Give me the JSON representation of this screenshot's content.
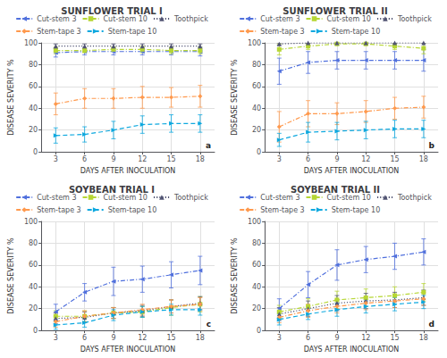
{
  "chart_data": [
    {
      "type": "line",
      "title": "SUNFLOWER TRIAL I",
      "annotation": "a",
      "xlabel": "DAYS AFTER INOCULATION",
      "ylabel": "DISEASE SEVERITY %",
      "x": [
        3,
        6,
        9,
        12,
        15,
        18
      ],
      "xlim": [
        1.5,
        19.5
      ],
      "xticks": [
        3,
        6,
        9,
        12,
        15,
        18
      ],
      "ylim": [
        0,
        100
      ],
      "yticks": [
        0,
        20,
        40,
        60,
        80,
        100
      ],
      "grid": true,
      "legend": "top",
      "series": [
        {
          "name": "Cut-stem 3",
          "values": [
            91,
            92,
            92,
            92,
            92,
            92
          ],
          "yerr": [
            4,
            3,
            3,
            3,
            3,
            4
          ],
          "marker": "triangle-left",
          "line_style": "dashdot"
        },
        {
          "name": "Cut-stem 10",
          "values": [
            93,
            93,
            94,
            94,
            93,
            93
          ],
          "yerr": [
            3,
            2,
            2,
            3,
            3,
            3
          ],
          "marker": "square",
          "line_style": "dashdot"
        },
        {
          "name": "Toothpick",
          "values": [
            97,
            97,
            97,
            97,
            97,
            97
          ],
          "yerr": [
            2,
            2,
            2,
            2,
            2,
            2
          ],
          "marker": "triangle-up",
          "line_style": "dotted"
        },
        {
          "name": "Stem-tape 3",
          "values": [
            44,
            49,
            49,
            50,
            50,
            51
          ],
          "yerr": [
            10,
            9,
            9,
            10,
            9,
            10
          ],
          "marker": "diamond",
          "line_style": "dashdot"
        },
        {
          "name": "Stem-tape 10",
          "values": [
            15,
            16,
            20,
            25,
            26,
            26
          ],
          "yerr": [
            7,
            7,
            8,
            8,
            8,
            8
          ],
          "marker": "triangle-right",
          "line_style": "dashed"
        }
      ]
    },
    {
      "type": "line",
      "title": "SUNFLOWER TRIAL II",
      "annotation": "b",
      "xlabel": "DAYS AFTER INOCULATION",
      "ylabel": "DISEASE SEVERITY %",
      "x": [
        3,
        6,
        9,
        12,
        15,
        18
      ],
      "xlim": [
        1.5,
        19.5
      ],
      "xticks": [
        3,
        6,
        9,
        12,
        15,
        18
      ],
      "ylim": [
        0,
        100
      ],
      "yticks": [
        0,
        20,
        40,
        60,
        80,
        100
      ],
      "grid": true,
      "legend": "top",
      "series": [
        {
          "name": "Cut-stem 3",
          "values": [
            74,
            82,
            84,
            84,
            84,
            84
          ],
          "yerr": [
            12,
            10,
            8,
            8,
            8,
            10
          ],
          "marker": "triangle-left",
          "line_style": "dashdot"
        },
        {
          "name": "Cut-stem 10",
          "values": [
            94,
            97,
            99,
            99,
            97,
            95
          ],
          "yerr": [
            5,
            3,
            1,
            1,
            3,
            5
          ],
          "marker": "square",
          "line_style": "dashdot"
        },
        {
          "name": "Toothpick",
          "values": [
            99,
            100,
            100,
            100,
            100,
            100
          ],
          "yerr": [
            1,
            0,
            0,
            0,
            0,
            0
          ],
          "marker": "triangle-up",
          "line_style": "dotted"
        },
        {
          "name": "Stem-tape 3",
          "values": [
            23,
            35,
            35,
            37,
            40,
            41
          ],
          "yerr": [
            14,
            12,
            10,
            10,
            10,
            10
          ],
          "marker": "diamond",
          "line_style": "dashdot"
        },
        {
          "name": "Stem-tape 10",
          "values": [
            11,
            18,
            19,
            20,
            21,
            21
          ],
          "yerr": [
            6,
            9,
            8,
            8,
            8,
            8
          ],
          "marker": "triangle-right",
          "line_style": "dashed"
        }
      ]
    },
    {
      "type": "line",
      "title": "SOYBEAN TRIAL I",
      "annotation": "c",
      "xlabel": "DAYS AFTER INOCULATION",
      "ylabel": "DISEASE SEVERITY %",
      "x": [
        3,
        6,
        9,
        12,
        15,
        18
      ],
      "xlim": [
        1.5,
        19.5
      ],
      "xticks": [
        3,
        6,
        9,
        12,
        15,
        18
      ],
      "ylim": [
        0,
        100
      ],
      "yticks": [
        0,
        20,
        40,
        60,
        80,
        100
      ],
      "grid": true,
      "legend": "top",
      "series": [
        {
          "name": "Cut-stem 3",
          "values": [
            17,
            35,
            45,
            47,
            51,
            55
          ],
          "yerr": [
            7,
            8,
            13,
            12,
            12,
            13
          ],
          "marker": "triangle-left",
          "line_style": "dashdot"
        },
        {
          "name": "Cut-stem 10",
          "values": [
            13,
            13,
            16,
            17,
            21,
            24
          ],
          "yerr": [
            5,
            5,
            5,
            5,
            7,
            7
          ],
          "marker": "square",
          "line_style": "dashdot"
        },
        {
          "name": "Toothpick",
          "values": [
            11,
            12,
            16,
            18,
            22,
            25
          ],
          "yerr": [
            5,
            5,
            5,
            5,
            6,
            6
          ],
          "marker": "triangle-up",
          "line_style": "dotted"
        },
        {
          "name": "Stem-tape 3",
          "values": [
            8,
            13,
            16,
            19,
            22,
            24
          ],
          "yerr": [
            5,
            5,
            5,
            5,
            6,
            6
          ],
          "marker": "diamond",
          "line_style": "dashdot"
        },
        {
          "name": "Stem-tape 10",
          "values": [
            5,
            7,
            14,
            17,
            19,
            19
          ],
          "yerr": [
            4,
            4,
            5,
            5,
            5,
            5
          ],
          "marker": "triangle-right",
          "line_style": "dashed"
        }
      ]
    },
    {
      "type": "line",
      "title": "SOYBEAN TRIAL II",
      "annotation": "d",
      "xlabel": "DAYS AFTER INOCULATION",
      "ylabel": "DISEASE SEVERITY %",
      "x": [
        3,
        6,
        9,
        12,
        15,
        18
      ],
      "xlim": [
        1.5,
        19.5
      ],
      "xticks": [
        3,
        6,
        9,
        12,
        15,
        18
      ],
      "ylim": [
        0,
        100
      ],
      "yticks": [
        0,
        20,
        40,
        60,
        80,
        100
      ],
      "grid": true,
      "legend": "top",
      "series": [
        {
          "name": "Cut-stem 3",
          "values": [
            20,
            42,
            60,
            65,
            68,
            72
          ],
          "yerr": [
            9,
            12,
            14,
            12,
            12,
            12
          ],
          "marker": "triangle-left",
          "line_style": "dashdot"
        },
        {
          "name": "Cut-stem 10",
          "values": [
            17,
            22,
            28,
            30,
            32,
            35
          ],
          "yerr": [
            6,
            7,
            8,
            8,
            8,
            8
          ],
          "marker": "square",
          "line_style": "dashdot"
        },
        {
          "name": "Toothpick",
          "values": [
            15,
            20,
            25,
            27,
            28,
            30
          ],
          "yerr": [
            6,
            7,
            7,
            7,
            7,
            7
          ],
          "marker": "triangle-up",
          "line_style": "dotted"
        },
        {
          "name": "Stem-tape 3",
          "values": [
            12,
            18,
            22,
            25,
            27,
            29
          ],
          "yerr": [
            5,
            6,
            6,
            6,
            6,
            6
          ],
          "marker": "diamond",
          "line_style": "dashdot"
        },
        {
          "name": "Stem-tape 10",
          "values": [
            10,
            15,
            19,
            22,
            24,
            26
          ],
          "yerr": [
            5,
            5,
            6,
            6,
            6,
            6
          ],
          "marker": "triangle-right",
          "line_style": "dashed"
        }
      ]
    }
  ]
}
